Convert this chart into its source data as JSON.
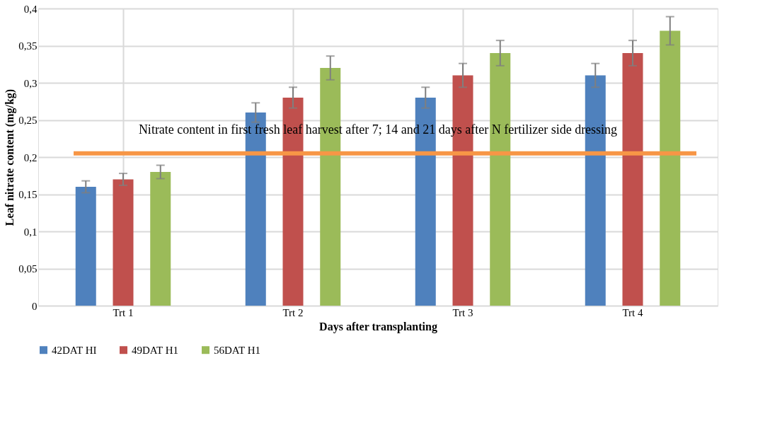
{
  "chart_data": {
    "type": "bar",
    "xlabel": "Days after transplanting",
    "ylabel": "Leaf nitrate content (mg/kg)",
    "categories": [
      "Trt 1",
      "Trt 2",
      "Trt 3",
      "Trt 4"
    ],
    "series": [
      {
        "name": "42DAT HI",
        "color": "#4f81bd",
        "values": [
          0.16,
          0.26,
          0.28,
          0.31
        ],
        "errors": [
          0.008,
          0.013,
          0.014,
          0.016
        ]
      },
      {
        "name": "49DAT H1",
        "color": "#c0504d",
        "values": [
          0.17,
          0.28,
          0.31,
          0.34
        ],
        "errors": [
          0.008,
          0.014,
          0.016,
          0.017
        ]
      },
      {
        "name": "56DAT H1",
        "color": "#9bbb59",
        "values": [
          0.18,
          0.32,
          0.34,
          0.37
        ],
        "errors": [
          0.009,
          0.016,
          0.017,
          0.019
        ]
      }
    ],
    "ylim": [
      0,
      0.4
    ],
    "yticks": [
      0,
      {
        "value": 0.05,
        "label": "0,05"
      },
      {
        "value": 0.1,
        "label": "0,1"
      },
      {
        "value": 0.15,
        "label": "0,15"
      },
      {
        "value": 0.2,
        "label": "0,2"
      },
      {
        "value": 0.25,
        "label": "0,25"
      },
      {
        "value": 0.3,
        "label": "0,3"
      },
      {
        "value": 0.35,
        "label": "0,35"
      },
      {
        "value": 0.4,
        "label": "0,4"
      }
    ],
    "ref_lines": [
      {
        "axis": "y",
        "value": 0.205,
        "label": "Nitrate content in first fresh leaf harvest after 7; 14 and 21 days after N fertilizer side dressing",
        "color": "#f79646"
      }
    ],
    "grid": true,
    "legend": "bottom"
  }
}
